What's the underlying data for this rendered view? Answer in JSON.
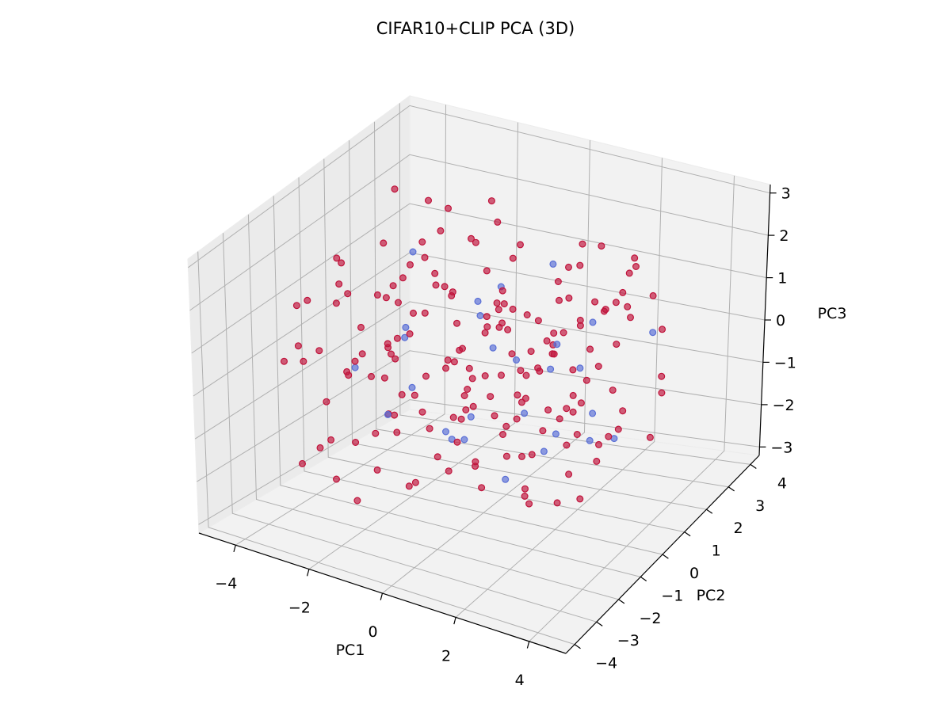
{
  "chart_data": {
    "type": "scatter",
    "projection": "3d",
    "title": "CIFAR10+CLIP PCA (3D)",
    "xlabel": "PC1",
    "ylabel": "PC2",
    "zlabel": "PC3",
    "xlim": [
      -5,
      5
    ],
    "ylim": [
      -4.4,
      4.4
    ],
    "zlim": [
      -3.2,
      3.2
    ],
    "xticks": [
      "−4",
      "−2",
      "0",
      "2",
      "4"
    ],
    "xtick_values": [
      -4,
      -2,
      0,
      2,
      4
    ],
    "yticks": [
      "−4",
      "−3",
      "−2",
      "−1",
      "0",
      "1",
      "2",
      "3",
      "4"
    ],
    "ytick_values": [
      -4,
      -3,
      -2,
      -1,
      0,
      1,
      2,
      3,
      4
    ],
    "zticks": [
      "−3",
      "−2",
      "−1",
      "0",
      "1",
      "2",
      "3"
    ],
    "ztick_values": [
      -3,
      -2,
      -1,
      0,
      1,
      2,
      3
    ],
    "grid": true,
    "colors": {
      "red_class": "#c0143c",
      "blue_class": "#5a6fd6",
      "pane": "#f2f2f2",
      "grid": "#b0b0b0"
    },
    "series": [
      {
        "color": "#c0143c",
        "points": [
          [
            -3.2,
            -1.0,
            2.1
          ],
          [
            -2.4,
            1.2,
            1.5
          ],
          [
            -1.8,
            -2.3,
            0.9
          ],
          [
            -0.6,
            0.4,
            2.6
          ],
          [
            0.8,
            -1.1,
            1.8
          ],
          [
            1.9,
            2.2,
            0.7
          ],
          [
            3.1,
            -0.3,
            1.2
          ],
          [
            -3.6,
            2.5,
            -0.4
          ],
          [
            -2.1,
            -0.8,
            -1.1
          ],
          [
            -1.2,
            1.9,
            -0.2
          ],
          [
            0.2,
            -2.9,
            0.3
          ],
          [
            1.4,
            0.6,
            -0.9
          ],
          [
            2.6,
            -2.0,
            -0.5
          ],
          [
            3.8,
            1.3,
            -1.4
          ],
          [
            -4.1,
            0.1,
            0.6
          ],
          [
            -2.9,
            2.9,
            1.8
          ],
          [
            -1.5,
            -3.1,
            -0.7
          ],
          [
            -0.3,
            1.1,
            0.8
          ],
          [
            0.9,
            -0.4,
            -1.6
          ],
          [
            2.2,
            3.0,
            1.6
          ],
          [
            3.4,
            -1.5,
            0.4
          ],
          [
            -3.3,
            -2.6,
            -1.8
          ],
          [
            -2.0,
            0.5,
            2.2
          ],
          [
            -0.9,
            -1.7,
            1.3
          ],
          [
            0.4,
            2.4,
            -0.6
          ],
          [
            1.6,
            -2.6,
            -1.2
          ],
          [
            2.9,
            0.2,
            2.0
          ],
          [
            4.0,
            -0.9,
            -0.3
          ],
          [
            -3.8,
            1.6,
            -1.5
          ],
          [
            -2.6,
            -1.4,
            0.2
          ],
          [
            -1.4,
            2.7,
            0.1
          ],
          [
            -0.1,
            -0.2,
            -2.1
          ],
          [
            1.1,
            1.5,
            1.1
          ],
          [
            2.4,
            -3.3,
            0.9
          ],
          [
            3.6,
            2.1,
            -0.8
          ],
          [
            -4.3,
            -1.2,
            1.0
          ],
          [
            -3.0,
            0.9,
            -2.3
          ],
          [
            -1.9,
            -2.7,
            2.4
          ],
          [
            -0.7,
            3.1,
            -1.0
          ],
          [
            0.6,
            -1.4,
            0.5
          ],
          [
            1.8,
            0.9,
            -2.4
          ],
          [
            3.0,
            -2.4,
            1.7
          ],
          [
            -2.3,
            1.7,
            1.9
          ],
          [
            -1.1,
            -0.6,
            -1.3
          ],
          [
            0.0,
            0.8,
            1.4
          ],
          [
            1.3,
            -0.2,
            0.2
          ],
          [
            2.5,
            1.1,
            -1.7
          ],
          [
            -3.5,
            -0.4,
            -0.6
          ],
          [
            -2.7,
            2.1,
            0.5
          ],
          [
            -1.6,
            -1.1,
            1.6
          ],
          [
            -0.4,
            1.6,
            -2.0
          ],
          [
            0.7,
            -2.2,
            2.1
          ],
          [
            2.0,
            2.6,
            -0.2
          ],
          [
            3.3,
            0.4,
            0.0
          ],
          [
            -3.9,
            2.2,
            2.3
          ],
          [
            -2.2,
            -2.0,
            -2.6
          ],
          [
            -0.8,
            0.0,
            0.0
          ],
          [
            0.5,
            3.3,
            1.0
          ],
          [
            1.7,
            -0.8,
            1.9
          ],
          [
            2.8,
            -1.2,
            -1.9
          ],
          [
            -4.0,
            -2.2,
            0.2
          ],
          [
            -1.3,
            2.3,
            2.5
          ],
          [
            0.3,
            -0.9,
            -0.4
          ],
          [
            1.5,
            1.8,
            0.6
          ],
          [
            2.7,
            -0.6,
            2.4
          ],
          [
            -3.1,
            0.3,
            0.9
          ],
          [
            -1.7,
            -0.3,
            -0.8
          ],
          [
            -0.2,
            -2.6,
            -1.5
          ],
          [
            1.0,
            2.9,
            -1.3
          ],
          [
            2.3,
            -1.8,
            0.6
          ],
          [
            3.5,
            0.8,
            1.5
          ],
          [
            -2.5,
            -3.0,
            1.1
          ],
          [
            -0.5,
            2.0,
            0.4
          ],
          [
            1.2,
            -3.0,
            -0.1
          ],
          [
            2.1,
            0.0,
            -0.7
          ],
          [
            -3.4,
            1.0,
            1.7
          ],
          [
            -1.0,
            -1.9,
            0.0
          ],
          [
            0.1,
            1.3,
            -1.1
          ],
          [
            1.9,
            -1.0,
            -2.2
          ],
          [
            3.2,
            2.7,
            0.3
          ],
          [
            -2.8,
            -1.7,
            2.0
          ],
          [
            -1.2,
            0.9,
            -1.7
          ],
          [
            0.8,
            0.3,
            2.8
          ],
          [
            2.6,
            1.6,
            1.3
          ],
          [
            -3.7,
            -0.8,
            -2.0
          ],
          [
            -2.0,
            3.2,
            -0.7
          ],
          [
            -0.3,
            -3.4,
            1.7
          ],
          [
            1.4,
            2.0,
            2.2
          ],
          [
            2.9,
            -2.8,
            -1.0
          ],
          [
            3.9,
            -0.2,
            2.6
          ],
          [
            -4.2,
            0.7,
            -1.2
          ],
          [
            -2.4,
            -0.1,
            1.4
          ],
          [
            -0.6,
            -0.7,
            2.0
          ],
          [
            0.9,
            1.0,
            -0.3
          ],
          [
            2.2,
            -0.5,
            1.0
          ],
          [
            -1.8,
            1.4,
            0.7
          ],
          [
            0.4,
            -1.9,
            -0.2
          ],
          [
            1.6,
            0.5,
            0.9
          ],
          [
            -2.9,
            0.8,
            -0.2
          ],
          [
            -0.9,
            2.6,
            1.2
          ],
          [
            1.1,
            -2.4,
            0.8
          ],
          [
            2.4,
            2.3,
            -1.5
          ],
          [
            -1.5,
            -2.4,
            0.5
          ],
          [
            0.0,
            2.7,
            -0.5
          ],
          [
            3.0,
            1.8,
            2.1
          ],
          [
            -3.2,
            2.8,
            0.4
          ],
          [
            -1.9,
            -1.6,
            -2.0
          ],
          [
            0.6,
            -0.1,
            -1.3
          ],
          [
            1.8,
            -1.6,
            1.4
          ],
          [
            3.7,
            -1.8,
            0.1
          ],
          [
            -2.6,
            0.2,
            -1.6
          ],
          [
            -0.2,
            0.6,
            -0.9
          ],
          [
            1.3,
            3.2,
            0.2
          ],
          [
            2.7,
            -0.4,
            0.7
          ],
          [
            -3.6,
            -1.8,
            1.5
          ],
          [
            -1.4,
            -0.9,
            2.4
          ],
          [
            0.2,
            -1.2,
            1.0
          ],
          [
            2.0,
            -2.1,
            2.2
          ],
          [
            3.3,
            -1.0,
            -1.8
          ],
          [
            -2.1,
            2.4,
            -1.9
          ],
          [
            -0.7,
            -2.1,
            -1.9
          ],
          [
            0.9,
            2.2,
            1.5
          ],
          [
            2.5,
            0.3,
            -0.4
          ],
          [
            -3.0,
            -2.9,
            0.7
          ],
          [
            -1.0,
            1.2,
            2.1
          ],
          [
            1.5,
            -2.7,
            -0.6
          ],
          [
            3.1,
            1.0,
            -1.2
          ],
          [
            -2.3,
            -0.5,
            0.3
          ],
          [
            -0.4,
            -0.4,
            0.5
          ],
          [
            1.0,
            0.1,
            -1.8
          ],
          [
            2.8,
            2.9,
            0.9
          ],
          [
            -3.3,
            1.3,
            -0.9
          ],
          [
            -1.6,
            3.0,
            1.7
          ],
          [
            0.5,
            -3.2,
            1.3
          ],
          [
            2.3,
            1.4,
            2.6
          ],
          [
            -2.8,
            -2.3,
            -0.4
          ],
          [
            -0.1,
            1.8,
            -1.5
          ],
          [
            1.7,
            -0.1,
            -1.0
          ],
          [
            3.6,
            0.5,
            1.9
          ],
          [
            -1.3,
            0.4,
            -0.4
          ],
          [
            0.7,
            2.5,
            -1.8
          ],
          [
            2.1,
            -1.5,
            -1.6
          ],
          [
            -2.5,
            1.5,
            2.6
          ],
          [
            -0.8,
            -2.8,
            2.6
          ],
          [
            1.2,
            1.1,
            0.3
          ],
          [
            2.6,
            -2.5,
            1.6
          ],
          [
            -3.8,
            -0.3,
            1.8
          ],
          [
            -1.7,
            2.0,
            -1.1
          ],
          [
            0.3,
            0.2,
            0.9
          ],
          [
            1.4,
            -1.3,
            2.3
          ],
          [
            3.4,
            2.4,
            -0.6
          ],
          [
            -2.2,
            -1.2,
            -1.4
          ],
          [
            -0.5,
            0.9,
            1.7
          ],
          [
            1.1,
            1.9,
            -2.3
          ],
          [
            2.9,
            -0.7,
            0.3
          ],
          [
            -3.1,
            -1.5,
            -2.5
          ],
          [
            -1.1,
            -2.3,
            1.2
          ],
          [
            0.6,
            1.4,
            0.6
          ],
          [
            2.2,
            0.7,
            1.1
          ],
          [
            -2.0,
            0.6,
            0.6
          ],
          [
            -0.3,
            -1.5,
            -1.4
          ],
          [
            1.3,
            -0.6,
            -0.6
          ],
          [
            3.0,
            -1.3,
            2.0
          ],
          [
            -2.7,
            2.6,
            -1.3
          ],
          [
            -0.9,
            -0.1,
            -2.4
          ],
          [
            0.8,
            -2.0,
            0.1
          ],
          [
            2.4,
            1.2,
            0.0
          ],
          [
            -3.4,
            -2.5,
            0.8
          ],
          [
            -1.5,
            1.0,
            1.0
          ],
          [
            0.1,
            3.0,
            0.7
          ],
          [
            1.9,
            -2.9,
            1.5
          ],
          [
            3.5,
            -0.6,
            -1.1
          ],
          [
            -2.4,
            -3.2,
            -1.0
          ],
          [
            -0.6,
            1.7,
            0.2
          ],
          [
            1.0,
            -0.8,
            0.4
          ],
          [
            2.7,
            2.0,
            1.8
          ],
          [
            -3.7,
            0.5,
            0.0
          ],
          [
            -1.8,
            -0.6,
            1.9
          ]
        ]
      },
      {
        "color": "#5a6fd6",
        "points": [
          [
            -1.5,
            -1.0,
            0.8
          ],
          [
            -0.5,
            1.5,
            1.1
          ],
          [
            0.5,
            -1.6,
            -0.8
          ],
          [
            1.5,
            0.8,
            0.5
          ],
          [
            2.5,
            -0.8,
            -0.6
          ],
          [
            3.5,
            1.8,
            0.7
          ],
          [
            -2.5,
            0.8,
            -1.2
          ],
          [
            -1.0,
            -2.5,
            -0.2
          ],
          [
            0.0,
            0.4,
            0.3
          ],
          [
            1.0,
            2.6,
            -0.9
          ],
          [
            2.0,
            -2.2,
            -1.1
          ],
          [
            3.0,
            0.0,
            -0.4
          ],
          [
            -2.0,
            -0.2,
            0.6
          ],
          [
            -3.2,
            1.9,
            1.2
          ],
          [
            1.8,
            -0.2,
            -1.4
          ],
          [
            0.3,
            -0.6,
            1.5
          ],
          [
            2.8,
            1.3,
            -1.6
          ],
          [
            -0.8,
            0.7,
            -1.5
          ],
          [
            1.2,
            1.0,
            -0.2
          ],
          [
            3.8,
            -1.4,
            -0.2
          ],
          [
            -1.6,
            2.2,
            0.3
          ],
          [
            0.8,
            -2.6,
            -0.3
          ],
          [
            2.2,
            -1.7,
            0.2
          ],
          [
            -0.2,
            -1.3,
            -0.9
          ],
          [
            1.6,
            -1.1,
            1.0
          ],
          [
            2.6,
            0.6,
            1.3
          ],
          [
            -2.8,
            -1.1,
            -0.1
          ],
          [
            0.6,
            2.0,
            1.6
          ]
        ]
      }
    ]
  }
}
